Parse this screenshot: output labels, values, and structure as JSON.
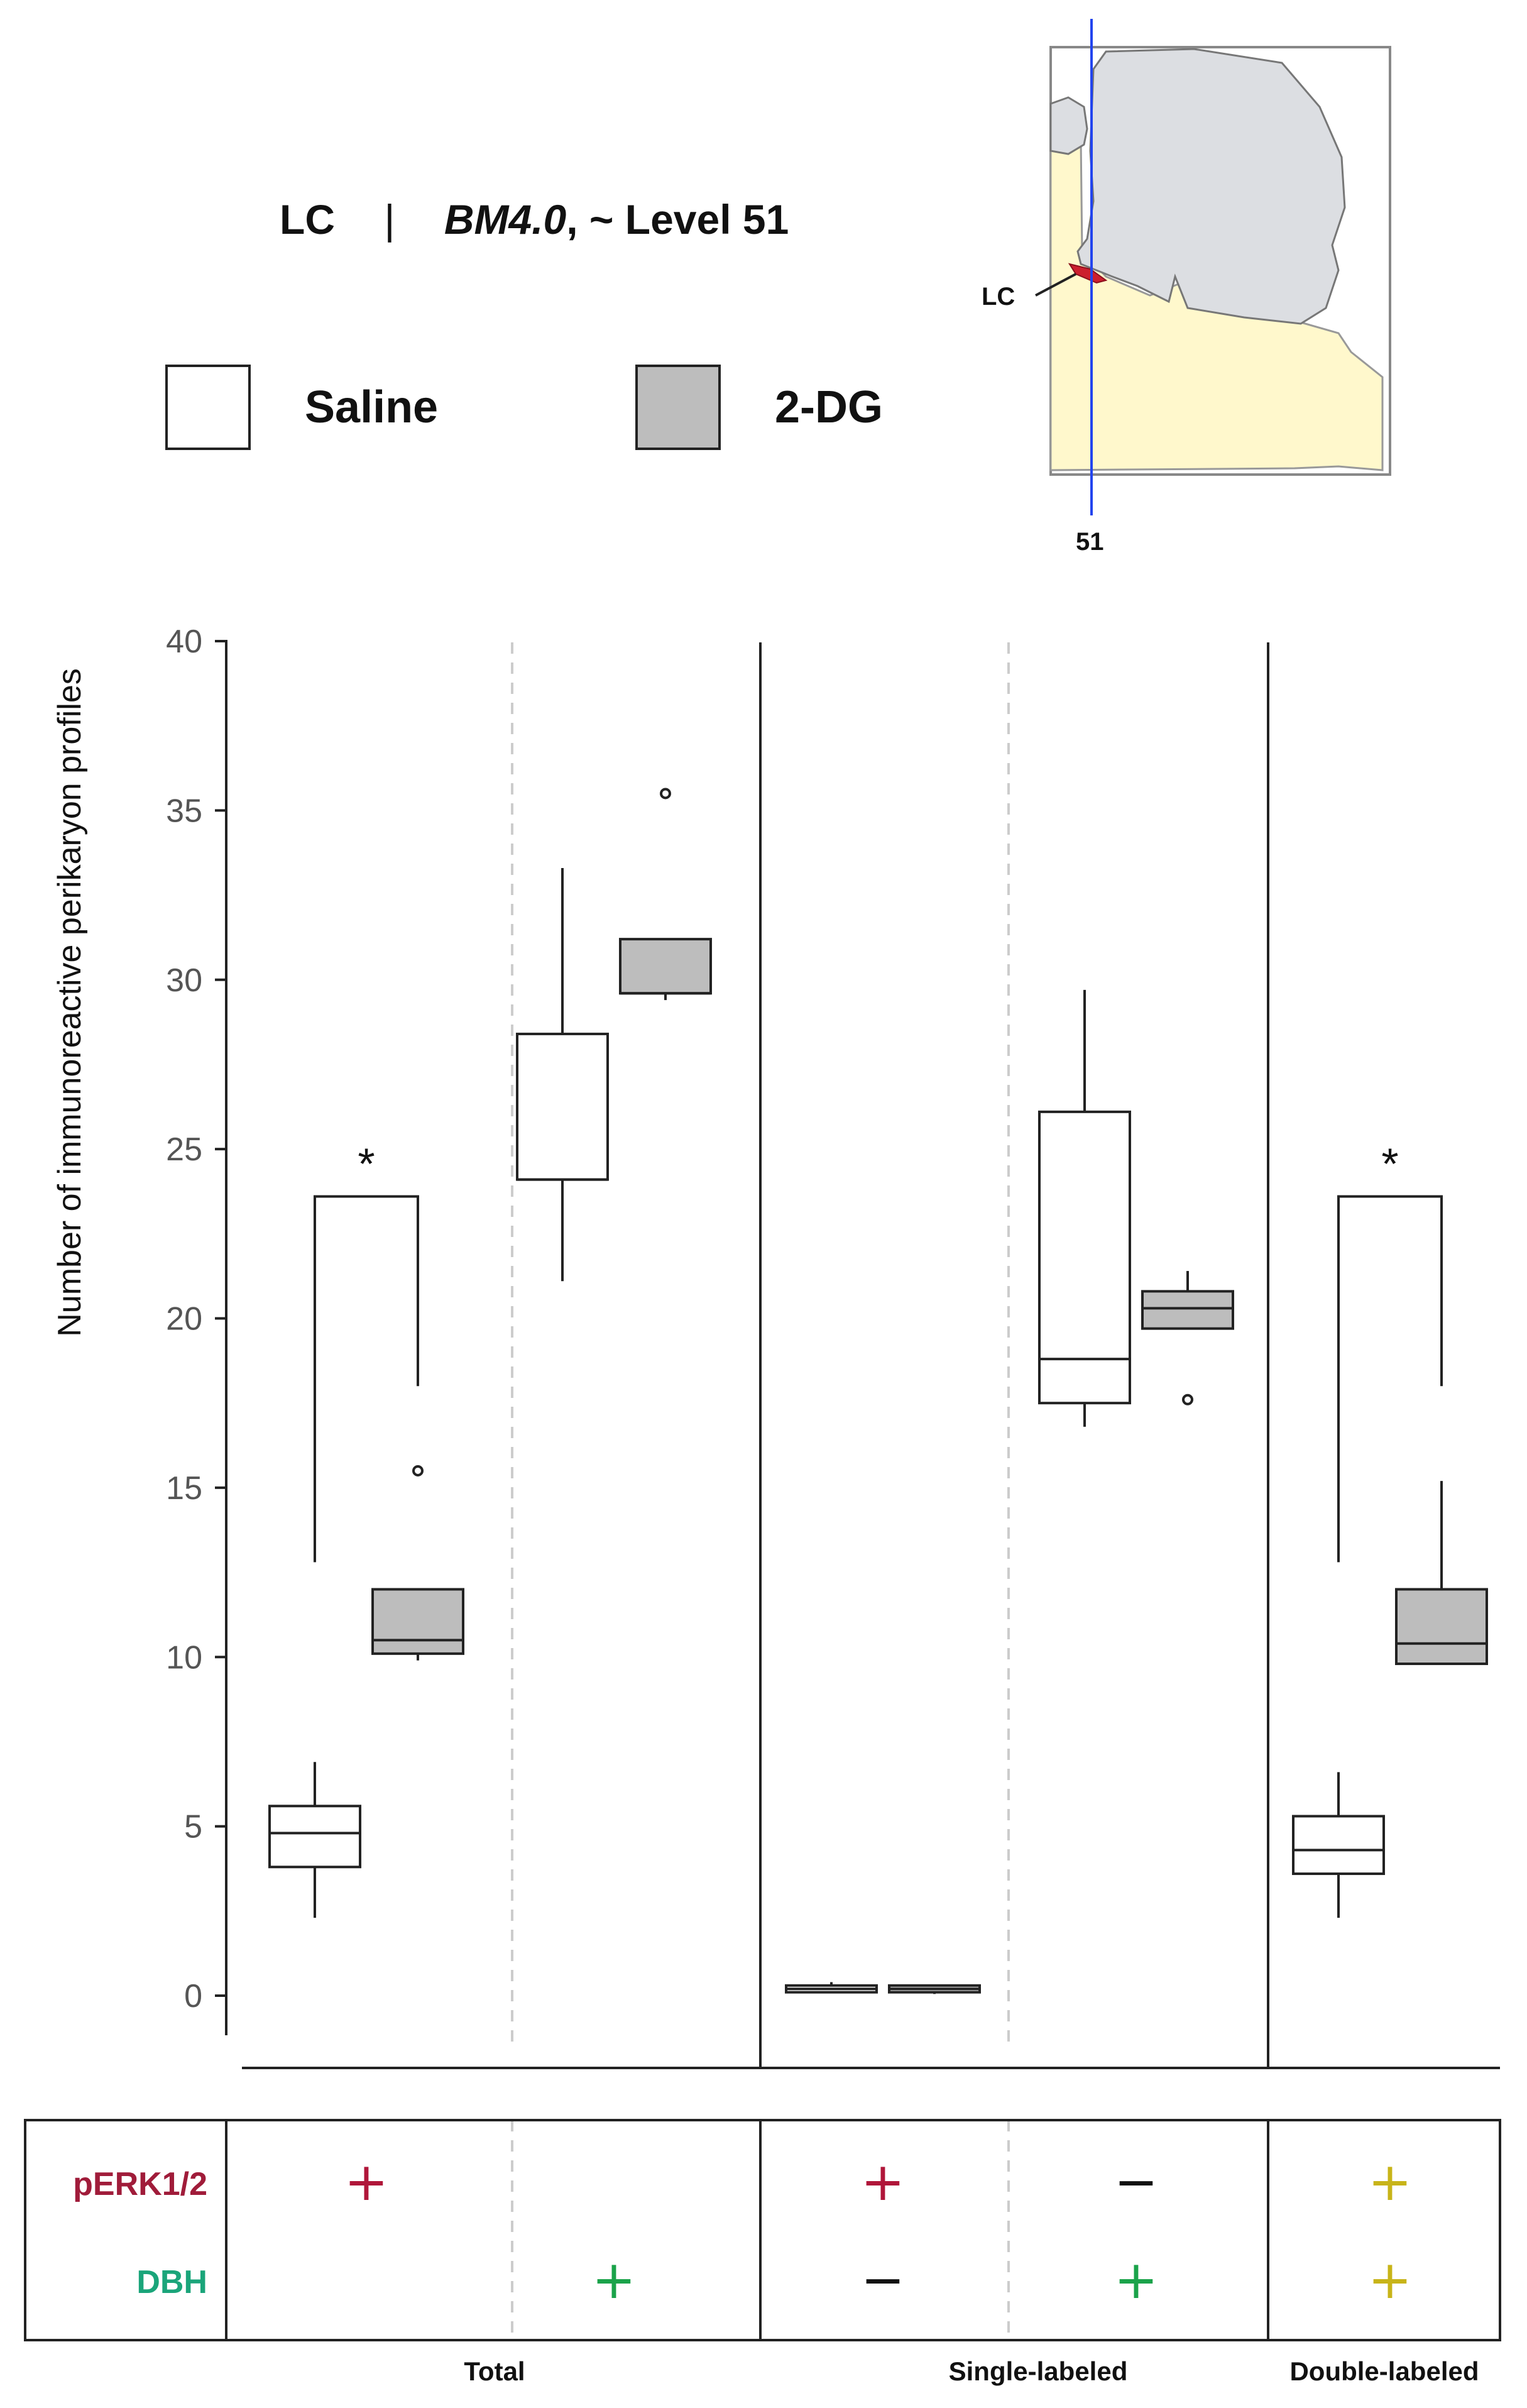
{
  "header": {
    "region": "LC",
    "separator": "|",
    "atlas": "BM4.0",
    "level_text": ", ~ Level 51"
  },
  "legend": {
    "items": [
      {
        "label": "Saline",
        "color": "#ffffff"
      },
      {
        "label": "2-DG",
        "color": "#bdbdbd"
      }
    ]
  },
  "inset": {
    "region_label": "LC",
    "level_label": "51",
    "colors": {
      "tissue": "#dcdee2",
      "background_tissue": "#fff8cc",
      "region": "#cc1f2e",
      "level_line": "#2244ee"
    }
  },
  "chart_data": {
    "type": "boxplot",
    "ylabel": "Number of immunoreactive perikaryon profiles",
    "ylim": [
      -1,
      40
    ],
    "yticks": [
      0,
      5,
      10,
      15,
      20,
      25,
      30,
      35,
      40
    ],
    "yticklabels": [
      "0",
      "5",
      "10",
      "15",
      "20",
      "25",
      "30",
      "35",
      "40"
    ],
    "groups": [
      "Total",
      "Single-labeled",
      "Double-labeled"
    ],
    "columns": [
      {
        "group": "Total",
        "markers": {
          "pERK1/2": "+",
          "DBH": ""
        },
        "significance": "*",
        "boxes": [
          {
            "treatment": "Saline",
            "whisker_low": 2.3,
            "q1": 3.8,
            "median": 4.8,
            "q3": 5.6,
            "whisker_high": 6.9,
            "outliers": []
          },
          {
            "treatment": "2-DG",
            "whisker_low": 9.9,
            "q1": 10.1,
            "median": 10.5,
            "q3": 12.0,
            "whisker_high": 12.0,
            "outliers": [
              15.5
            ]
          }
        ]
      },
      {
        "group": "Total",
        "markers": {
          "pERK1/2": "",
          "DBH": "+"
        },
        "significance": "",
        "boxes": [
          {
            "treatment": "Saline",
            "whisker_low": 21.1,
            "q1": 24.1,
            "median": 24.1,
            "q3": 28.4,
            "whisker_high": 33.3,
            "outliers": []
          },
          {
            "treatment": "2-DG",
            "whisker_low": 29.4,
            "q1": 29.6,
            "median": 29.6,
            "q3": 31.2,
            "whisker_high": 31.2,
            "outliers": [
              35.5
            ]
          }
        ]
      },
      {
        "group": "Single-labeled",
        "markers": {
          "pERK1/2": "+",
          "DBH": "−"
        },
        "significance": "",
        "boxes": [
          {
            "treatment": "Saline",
            "whisker_low": 0.1,
            "q1": 0.1,
            "median": 0.2,
            "q3": 0.3,
            "whisker_high": 0.4,
            "outliers": []
          },
          {
            "treatment": "2-DG",
            "whisker_low": 0.05,
            "q1": 0.1,
            "median": 0.2,
            "q3": 0.3,
            "whisker_high": 0.3,
            "outliers": []
          }
        ]
      },
      {
        "group": "Single-labeled",
        "markers": {
          "pERK1/2": "−",
          "DBH": "+"
        },
        "significance": "",
        "boxes": [
          {
            "treatment": "Saline",
            "whisker_low": 16.8,
            "q1": 17.5,
            "median": 18.8,
            "q3": 26.1,
            "whisker_high": 29.7,
            "outliers": []
          },
          {
            "treatment": "2-DG",
            "whisker_low": 19.7,
            "q1": 19.7,
            "median": 20.3,
            "q3": 20.8,
            "whisker_high": 21.4,
            "outliers": [
              17.6
            ]
          }
        ]
      },
      {
        "group": "Double-labeled",
        "markers": {
          "pERK1/2": "+",
          "DBH": "+"
        },
        "significance": "*",
        "boxes": [
          {
            "treatment": "Saline",
            "whisker_low": 2.3,
            "q1": 3.6,
            "median": 4.3,
            "q3": 5.3,
            "whisker_high": 6.6,
            "outliers": []
          },
          {
            "treatment": "2-DG",
            "whisker_low": 9.8,
            "q1": 9.8,
            "median": 10.4,
            "q3": 12.0,
            "whisker_high": 15.2,
            "outliers": []
          }
        ]
      }
    ],
    "markers_table": {
      "rows": [
        {
          "label": "pERK1/2",
          "color": "#a01c3a"
        },
        {
          "label": "DBH",
          "color": "#1aa57a"
        }
      ],
      "sign_colors": {
        "pERK_only": "#b0163a",
        "DBH_only": "#1aa34a",
        "double": "#c8b419",
        "minus": "#111111"
      }
    }
  }
}
